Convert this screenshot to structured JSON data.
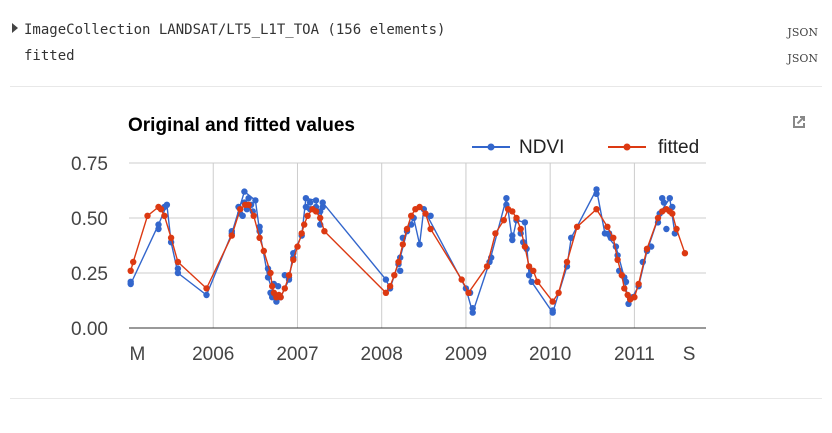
{
  "console": {
    "row1_text": "ImageCollection LANDSAT/LT5_L1T_TOA (156 elements)",
    "row1_json": "JSON",
    "row2_text": "fitted",
    "row2_json": "JSON"
  },
  "icons": {
    "popout": "open-in-new-icon",
    "expand": "triangle-right-icon"
  },
  "chart_data": {
    "type": "line",
    "title": "Original and fitted values",
    "xlabel": "",
    "ylabel": "",
    "legend_position": "top-right",
    "xlim": [
      2005.0,
      2011.85
    ],
    "ylim": [
      0.0,
      0.75
    ],
    "y_ticks": [
      0.0,
      0.25,
      0.5,
      0.75
    ],
    "y_tick_labels": [
      "0.00",
      "0.25",
      "0.50",
      "0.75"
    ],
    "x_tick_labels": [
      {
        "label": "M",
        "x": 2005.1
      },
      {
        "label": "2006",
        "x": 2006.0
      },
      {
        "label": "2007",
        "x": 2007.0
      },
      {
        "label": "2008",
        "x": 2008.0
      },
      {
        "label": "2009",
        "x": 2009.0
      },
      {
        "label": "2010",
        "x": 2010.0
      },
      {
        "label": "2011",
        "x": 2011.0
      },
      {
        "label": "S",
        "x": 2011.65
      }
    ],
    "series": [
      {
        "name": "NDVI",
        "color": "#3366cc",
        "points": [
          [
            2005.02,
            0.2
          ],
          [
            2005.02,
            0.21
          ],
          [
            2005.35,
            0.47
          ],
          [
            2005.35,
            0.45
          ],
          [
            2005.42,
            0.55
          ],
          [
            2005.45,
            0.56
          ],
          [
            2005.5,
            0.39
          ],
          [
            2005.58,
            0.27
          ],
          [
            2005.58,
            0.25
          ],
          [
            2005.92,
            0.15
          ],
          [
            2006.22,
            0.43
          ],
          [
            2006.22,
            0.44
          ],
          [
            2006.3,
            0.55
          ],
          [
            2006.32,
            0.52
          ],
          [
            2006.35,
            0.51
          ],
          [
            2006.37,
            0.57
          ],
          [
            2006.37,
            0.62
          ],
          [
            2006.4,
            0.54
          ],
          [
            2006.42,
            0.59
          ],
          [
            2006.45,
            0.56
          ],
          [
            2006.47,
            0.53
          ],
          [
            2006.5,
            0.58
          ],
          [
            2006.55,
            0.46
          ],
          [
            2006.55,
            0.44
          ],
          [
            2006.65,
            0.23
          ],
          [
            2006.65,
            0.27
          ],
          [
            2006.68,
            0.16
          ],
          [
            2006.7,
            0.14
          ],
          [
            2006.72,
            0.2
          ],
          [
            2006.75,
            0.12
          ],
          [
            2006.77,
            0.19
          ],
          [
            2006.8,
            0.14
          ],
          [
            2006.85,
            0.24
          ],
          [
            2006.9,
            0.23
          ],
          [
            2006.9,
            0.22
          ],
          [
            2006.95,
            0.32
          ],
          [
            2006.95,
            0.34
          ],
          [
            2007.05,
            0.42
          ],
          [
            2007.1,
            0.55
          ],
          [
            2007.1,
            0.59
          ],
          [
            2007.15,
            0.54
          ],
          [
            2007.22,
            0.55
          ],
          [
            2007.22,
            0.58
          ],
          [
            2007.27,
            0.53
          ],
          [
            2007.27,
            0.47
          ],
          [
            2007.3,
            0.55
          ],
          [
            2007.3,
            0.57
          ],
          [
            2007.15,
            0.57
          ],
          [
            2008.05,
            0.22
          ],
          [
            2008.1,
            0.18
          ],
          [
            2008.2,
            0.29
          ],
          [
            2008.22,
            0.26
          ],
          [
            2008.22,
            0.32
          ],
          [
            2008.25,
            0.41
          ],
          [
            2008.3,
            0.44
          ],
          [
            2008.35,
            0.47
          ],
          [
            2008.38,
            0.5
          ],
          [
            2008.45,
            0.38
          ],
          [
            2008.5,
            0.54
          ],
          [
            2008.58,
            0.51
          ],
          [
            2009.0,
            0.18
          ],
          [
            2009.05,
            0.16
          ],
          [
            2009.08,
            0.09
          ],
          [
            2009.08,
            0.07
          ],
          [
            2009.28,
            0.3
          ],
          [
            2009.3,
            0.32
          ],
          [
            2009.48,
            0.59
          ],
          [
            2009.48,
            0.56
          ],
          [
            2009.55,
            0.42
          ],
          [
            2009.55,
            0.4
          ],
          [
            2009.6,
            0.49
          ],
          [
            2009.65,
            0.43
          ],
          [
            2009.68,
            0.39
          ],
          [
            2009.7,
            0.48
          ],
          [
            2009.72,
            0.36
          ],
          [
            2009.75,
            0.24
          ],
          [
            2009.78,
            0.26
          ],
          [
            2009.78,
            0.21
          ],
          [
            2010.03,
            0.08
          ],
          [
            2010.03,
            0.07
          ],
          [
            2010.2,
            0.28
          ],
          [
            2010.25,
            0.41
          ],
          [
            2010.55,
            0.63
          ],
          [
            2010.55,
            0.61
          ],
          [
            2010.65,
            0.43
          ],
          [
            2010.7,
            0.43
          ],
          [
            2010.72,
            0.41
          ],
          [
            2010.78,
            0.37
          ],
          [
            2010.8,
            0.33
          ],
          [
            2010.82,
            0.26
          ],
          [
            2010.88,
            0.23
          ],
          [
            2010.9,
            0.21
          ],
          [
            2010.93,
            0.11
          ],
          [
            2010.98,
            0.14
          ],
          [
            2011.05,
            0.19
          ],
          [
            2011.1,
            0.3
          ],
          [
            2011.15,
            0.35
          ],
          [
            2011.2,
            0.37
          ],
          [
            2011.28,
            0.48
          ],
          [
            2011.3,
            0.52
          ],
          [
            2011.33,
            0.59
          ],
          [
            2011.35,
            0.57
          ],
          [
            2011.38,
            0.45
          ],
          [
            2011.42,
            0.59
          ],
          [
            2011.45,
            0.55
          ],
          [
            2011.48,
            0.43
          ]
        ],
        "connected": [
          [
            2005.02,
            0.2
          ],
          [
            2005.35,
            0.47
          ],
          [
            2005.45,
            0.56
          ],
          [
            2005.5,
            0.39
          ],
          [
            2005.58,
            0.25
          ],
          [
            2005.92,
            0.15
          ],
          [
            2006.22,
            0.43
          ],
          [
            2006.37,
            0.62
          ],
          [
            2006.5,
            0.58
          ],
          [
            2006.55,
            0.44
          ],
          [
            2006.65,
            0.23
          ],
          [
            2006.75,
            0.12
          ],
          [
            2006.8,
            0.14
          ],
          [
            2006.9,
            0.22
          ],
          [
            2006.95,
            0.34
          ],
          [
            2007.05,
            0.42
          ],
          [
            2007.1,
            0.59
          ],
          [
            2007.22,
            0.58
          ],
          [
            2007.27,
            0.47
          ],
          [
            2007.3,
            0.57
          ],
          [
            2008.05,
            0.22
          ],
          [
            2008.1,
            0.18
          ],
          [
            2008.22,
            0.32
          ],
          [
            2008.3,
            0.44
          ],
          [
            2008.38,
            0.5
          ],
          [
            2008.45,
            0.38
          ],
          [
            2008.5,
            0.54
          ],
          [
            2009.0,
            0.18
          ],
          [
            2009.08,
            0.07
          ],
          [
            2009.28,
            0.3
          ],
          [
            2009.48,
            0.59
          ],
          [
            2009.55,
            0.4
          ],
          [
            2009.6,
            0.49
          ],
          [
            2009.7,
            0.48
          ],
          [
            2009.75,
            0.24
          ],
          [
            2009.78,
            0.21
          ],
          [
            2010.03,
            0.07
          ],
          [
            2010.2,
            0.28
          ],
          [
            2010.25,
            0.41
          ],
          [
            2010.55,
            0.63
          ],
          [
            2010.65,
            0.43
          ],
          [
            2010.78,
            0.37
          ],
          [
            2010.88,
            0.23
          ],
          [
            2010.93,
            0.11
          ],
          [
            2011.05,
            0.19
          ],
          [
            2011.15,
            0.35
          ],
          [
            2011.3,
            0.52
          ],
          [
            2011.42,
            0.59
          ],
          [
            2011.48,
            0.43
          ]
        ]
      },
      {
        "name": "fitted",
        "color": "#dc3912",
        "points": [
          [
            2005.02,
            0.26
          ],
          [
            2005.05,
            0.3
          ],
          [
            2005.22,
            0.51
          ],
          [
            2005.35,
            0.55
          ],
          [
            2005.38,
            0.54
          ],
          [
            2005.42,
            0.51
          ],
          [
            2005.5,
            0.41
          ],
          [
            2005.58,
            0.3
          ],
          [
            2005.92,
            0.18
          ],
          [
            2006.22,
            0.42
          ],
          [
            2006.32,
            0.54
          ],
          [
            2006.38,
            0.56
          ],
          [
            2006.42,
            0.56
          ],
          [
            2006.48,
            0.51
          ],
          [
            2006.55,
            0.41
          ],
          [
            2006.6,
            0.35
          ],
          [
            2006.68,
            0.25
          ],
          [
            2006.7,
            0.19
          ],
          [
            2006.72,
            0.16
          ],
          [
            2006.75,
            0.14
          ],
          [
            2006.78,
            0.15
          ],
          [
            2006.8,
            0.14
          ],
          [
            2006.85,
            0.18
          ],
          [
            2006.9,
            0.24
          ],
          [
            2006.95,
            0.31
          ],
          [
            2007.0,
            0.37
          ],
          [
            2007.05,
            0.43
          ],
          [
            2007.08,
            0.47
          ],
          [
            2007.12,
            0.51
          ],
          [
            2007.18,
            0.54
          ],
          [
            2007.22,
            0.53
          ],
          [
            2007.27,
            0.5
          ],
          [
            2007.32,
            0.44
          ],
          [
            2008.05,
            0.16
          ],
          [
            2008.1,
            0.19
          ],
          [
            2008.15,
            0.24
          ],
          [
            2008.2,
            0.3
          ],
          [
            2008.25,
            0.38
          ],
          [
            2008.3,
            0.45
          ],
          [
            2008.35,
            0.51
          ],
          [
            2008.4,
            0.54
          ],
          [
            2008.45,
            0.55
          ],
          [
            2008.52,
            0.52
          ],
          [
            2008.58,
            0.45
          ],
          [
            2008.95,
            0.22
          ],
          [
            2009.03,
            0.16
          ],
          [
            2009.25,
            0.28
          ],
          [
            2009.35,
            0.43
          ],
          [
            2009.45,
            0.49
          ],
          [
            2009.5,
            0.54
          ],
          [
            2009.55,
            0.53
          ],
          [
            2009.6,
            0.5
          ],
          [
            2009.65,
            0.45
          ],
          [
            2009.7,
            0.37
          ],
          [
            2009.75,
            0.28
          ],
          [
            2009.8,
            0.26
          ],
          [
            2009.85,
            0.21
          ],
          [
            2010.03,
            0.12
          ],
          [
            2010.1,
            0.16
          ],
          [
            2010.2,
            0.3
          ],
          [
            2010.32,
            0.46
          ],
          [
            2010.55,
            0.54
          ],
          [
            2010.68,
            0.46
          ],
          [
            2010.75,
            0.41
          ],
          [
            2010.8,
            0.31
          ],
          [
            2010.85,
            0.24
          ],
          [
            2010.88,
            0.18
          ],
          [
            2010.92,
            0.15
          ],
          [
            2010.95,
            0.13
          ],
          [
            2011.0,
            0.14
          ],
          [
            2011.05,
            0.2
          ],
          [
            2011.15,
            0.36
          ],
          [
            2011.28,
            0.5
          ],
          [
            2011.33,
            0.53
          ],
          [
            2011.38,
            0.54
          ],
          [
            2011.42,
            0.53
          ],
          [
            2011.45,
            0.52
          ],
          [
            2011.5,
            0.45
          ],
          [
            2011.6,
            0.34
          ]
        ]
      }
    ]
  }
}
